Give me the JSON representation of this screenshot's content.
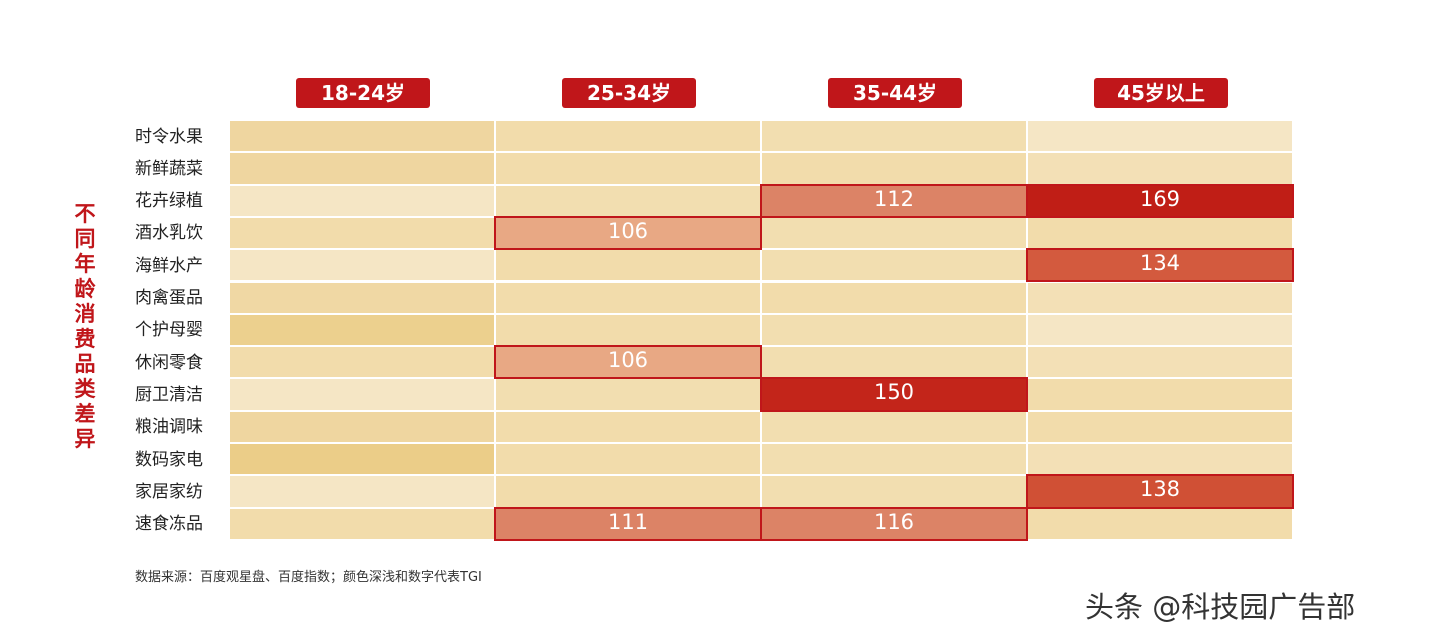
{
  "chart_data": {
    "type": "heatmap",
    "y_axis_title": "不同年龄消费品类差异",
    "columns": [
      "18-24岁",
      "25-34岁",
      "35-44岁",
      "45岁以上"
    ],
    "rows": [
      "时令水果",
      "新鲜蔬菜",
      "花卉绿植",
      "酒水乳饮",
      "海鲜水产",
      "肉禽蛋品",
      "个护母婴",
      "休闲零食",
      "厨卫清洁",
      "粮油调味",
      "数码家电",
      "家居家纺",
      "速食冻品"
    ],
    "values": [
      [
        null,
        null,
        null,
        null
      ],
      [
        null,
        null,
        null,
        null
      ],
      [
        null,
        null,
        112,
        169
      ],
      [
        null,
        106,
        null,
        null
      ],
      [
        null,
        null,
        null,
        134
      ],
      [
        null,
        null,
        null,
        null
      ],
      [
        null,
        null,
        null,
        null
      ],
      [
        null,
        106,
        null,
        null
      ],
      [
        null,
        null,
        150,
        null
      ],
      [
        null,
        null,
        null,
        null
      ],
      [
        null,
        null,
        null,
        null
      ],
      [
        null,
        null,
        null,
        138
      ],
      [
        null,
        111,
        116,
        null
      ]
    ],
    "colors": [
      [
        "#efd6a0",
        "#f2dcab",
        "#f2deb0",
        "#f5e6c5"
      ],
      [
        "#efd6a0",
        "#f2dcab",
        "#f2dcab",
        "#f3e0b6"
      ],
      [
        "#f5e6c5",
        "#f2deb0",
        "#dc8366",
        "#c01e16"
      ],
      [
        "#f2dcab",
        "#e8a884",
        "#f2deb0",
        "#f2dcab"
      ],
      [
        "#f5e6c5",
        "#f2dcab",
        "#f2deb0",
        "#d35a3e"
      ],
      [
        "#f0d8a4",
        "#f2dcab",
        "#f2dcab",
        "#f3e0b6"
      ],
      [
        "#ecd08e",
        "#f2dcab",
        "#f2deb0",
        "#f5e6c5"
      ],
      [
        "#f2dcab",
        "#e8a884",
        "#f2deb0",
        "#f3e0b6"
      ],
      [
        "#f5e6c5",
        "#f2deb0",
        "#c3251a",
        "#f2dcab"
      ],
      [
        "#efd6a0",
        "#f2dcab",
        "#f2deb0",
        "#f2dcab"
      ],
      [
        "#ebcd88",
        "#f2dcab",
        "#f2deb0",
        "#f3e0b6"
      ],
      [
        "#f5e6c5",
        "#f2dcab",
        "#f2deb0",
        "#d05035"
      ],
      [
        "#f2dcab",
        "#dc8366",
        "#dc8366",
        "#f2dcab"
      ]
    ],
    "highlight_color": "#c0161a",
    "note": "数据来源：百度观星盘、百度指数；颜色深浅和数字代表TGI"
  },
  "watermark": "头条 @科技园广告部"
}
